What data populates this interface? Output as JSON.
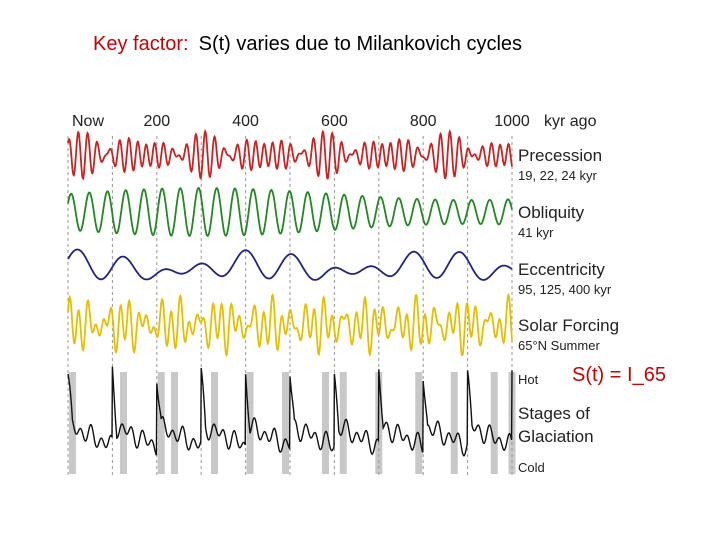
{
  "title": {
    "key_label": "Key factor:",
    "text": "S(t) varies due to Milankovich cycles"
  },
  "formula": "S(t) = I_65",
  "chart_data": {
    "type": "line",
    "x_ticks": [
      "Now",
      "200",
      "400",
      "600",
      "800",
      "1000"
    ],
    "x_unit": "kyr ago",
    "xlim": [
      0,
      1000
    ],
    "grid": "dashed vertical every 100 kyr",
    "series": [
      {
        "name": "Precession",
        "sublabel": "19, 22, 24 kyr",
        "color": "#cc2222",
        "periods_kyr": [
          19,
          22,
          24
        ]
      },
      {
        "name": "Obliquity",
        "sublabel": "41 kyr",
        "color": "#228822",
        "periods_kyr": [
          41
        ]
      },
      {
        "name": "Eccentricity",
        "sublabel": "95, 125, 400 kyr",
        "color": "#22228a",
        "periods_kyr": [
          95,
          125,
          400
        ]
      },
      {
        "name": "Solar Forcing",
        "sublabel": "65°N Summer",
        "color": "#e6bf00",
        "periods_kyr": []
      },
      {
        "name": "Stages of Glaciation",
        "sublabel": "",
        "color": "#111111",
        "periods_kyr": []
      }
    ],
    "glaciation_scale": {
      "top": "Hot",
      "bottom": "Cold"
    },
    "interglacials_kyr_ago": [
      10,
      125,
      210,
      240,
      330,
      410,
      490,
      580,
      620,
      700,
      790,
      870,
      960,
      1000
    ]
  }
}
